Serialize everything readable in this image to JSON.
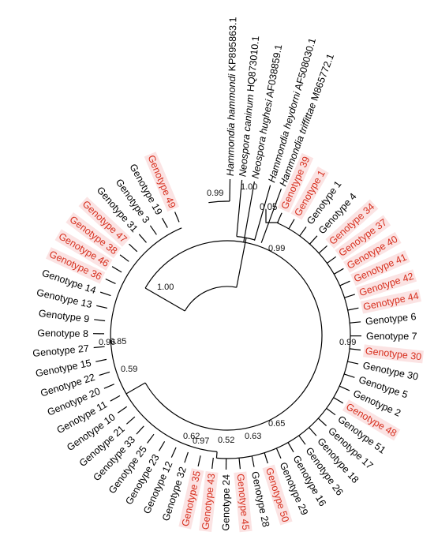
{
  "colors": {
    "branch": "#000000",
    "label_default": "#000000",
    "label_highlight": "#d7301f",
    "highlight_background": "#fbe3e3"
  },
  "scale_bar": {
    "label": "0.05"
  },
  "outgroups": [
    {
      "species": "Hammondia hammondi",
      "accession": "KP895863.1"
    },
    {
      "species": "Neospora caninum",
      "accession": "HQ873010.1"
    },
    {
      "species": "Neospora hughesi",
      "accession": "AF038859.1"
    },
    {
      "species": "Hammondia heydorni",
      "accession": "AF508030.1"
    },
    {
      "species": "Hammondia triffittae",
      "accession": "M865772.1"
    }
  ],
  "tips": [
    {
      "label": "Genotype 39",
      "highlight": true
    },
    {
      "label": "Genotype 1",
      "highlight": true
    },
    {
      "label": "Genotype 1",
      "highlight": false
    },
    {
      "label": "Genotype 4",
      "highlight": false
    },
    {
      "label": "Genotype 34",
      "highlight": true
    },
    {
      "label": "Genotype 37",
      "highlight": true
    },
    {
      "label": "Genotype 40",
      "highlight": true
    },
    {
      "label": "Genotype 41",
      "highlight": true
    },
    {
      "label": "Genotype 42",
      "highlight": true
    },
    {
      "label": "Genotype 44",
      "highlight": true
    },
    {
      "label": "Genotype 6",
      "highlight": false
    },
    {
      "label": "Genotype 7",
      "highlight": false
    },
    {
      "label": "Genotype 30",
      "highlight": true
    },
    {
      "label": "Genotype 30",
      "highlight": false
    },
    {
      "label": "Genotype 5",
      "highlight": false
    },
    {
      "label": "Genotype 2",
      "highlight": false
    },
    {
      "label": "Genotype 48",
      "highlight": true
    },
    {
      "label": "Genotype 51",
      "highlight": false
    },
    {
      "label": "Genotype 17",
      "highlight": false
    },
    {
      "label": "Genotype 18",
      "highlight": false
    },
    {
      "label": "Genotype 26",
      "highlight": false
    },
    {
      "label": "Genotype 16",
      "highlight": false
    },
    {
      "label": "Genotype 29",
      "highlight": false
    },
    {
      "label": "Genotype 50",
      "highlight": true
    },
    {
      "label": "Genotype 28",
      "highlight": false
    },
    {
      "label": "Genotype 45",
      "highlight": true
    },
    {
      "label": "Genotype 24",
      "highlight": false
    },
    {
      "label": "Genotype 43",
      "highlight": true
    },
    {
      "label": "Genotype 35",
      "highlight": true
    },
    {
      "label": "Genotype 32",
      "highlight": false
    },
    {
      "label": "Genotype 12",
      "highlight": false
    },
    {
      "label": "Genotype 23",
      "highlight": false
    },
    {
      "label": "Genotype 25",
      "highlight": false
    },
    {
      "label": "Genotype 33",
      "highlight": false
    },
    {
      "label": "Genotype 21",
      "highlight": false
    },
    {
      "label": "Genotype 10",
      "highlight": false
    },
    {
      "label": "Genotype 11",
      "highlight": false
    },
    {
      "label": "Genotype 20",
      "highlight": false
    },
    {
      "label": "Genotype 22",
      "highlight": false
    },
    {
      "label": "Genotype 15",
      "highlight": false
    },
    {
      "label": "Genotype 27",
      "highlight": false
    },
    {
      "label": "Genotype 8",
      "highlight": false
    },
    {
      "label": "Genotype 9",
      "highlight": false
    },
    {
      "label": "Genotype 13",
      "highlight": false
    },
    {
      "label": "Genotype 14",
      "highlight": false
    },
    {
      "label": "Genotype 36",
      "highlight": true
    },
    {
      "label": "Genotype 46",
      "highlight": true
    },
    {
      "label": "Genotype 38",
      "highlight": true
    },
    {
      "label": "Genotype 47",
      "highlight": true
    },
    {
      "label": "Genotype 31",
      "highlight": false
    },
    {
      "label": "Genotype 3",
      "highlight": false
    },
    {
      "label": "Genotype 19",
      "highlight": false
    },
    {
      "label": "Genotype 49",
      "highlight": true
    }
  ],
  "support_values": [
    "1.00",
    "0.99",
    "0.99",
    "0.65",
    "0.63",
    "0.52",
    "0.97",
    "0.62",
    "0.59",
    "0.85",
    "0.96",
    "1.00",
    "0.99"
  ]
}
